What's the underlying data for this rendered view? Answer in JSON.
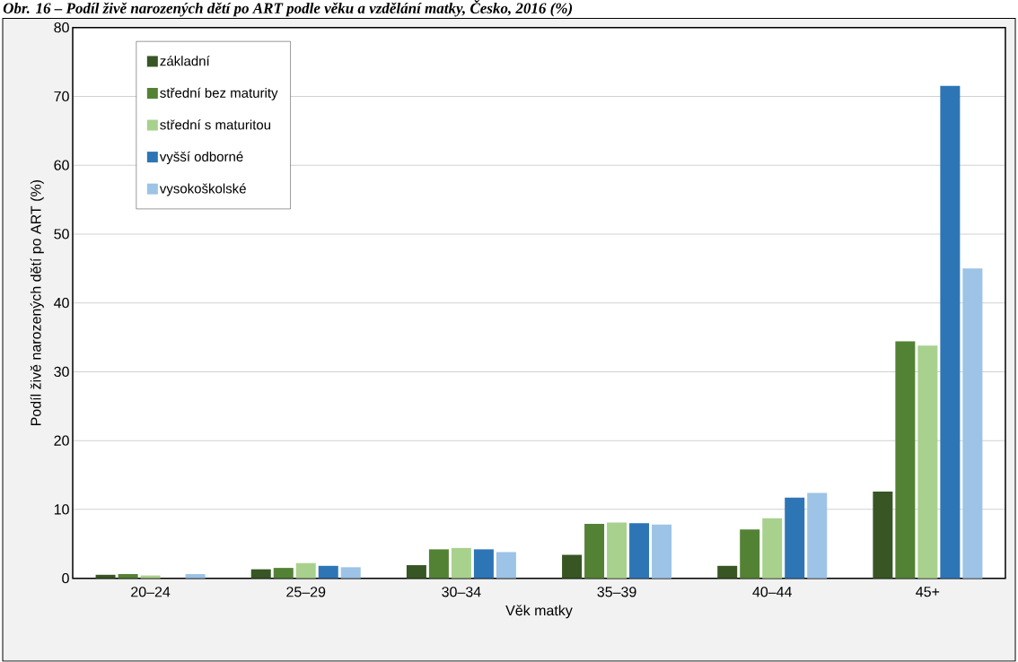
{
  "chart_data": {
    "type": "bar",
    "title": "Obr. 16 – Podíl živě narozených dětí po ART podle věku a vzdělání matky, Česko, 2016 (%)",
    "xlabel": "Věk matky",
    "ylabel": "Podíl živě narozených dětí po ART (%)",
    "categories": [
      "20–24",
      "25–29",
      "30–34",
      "35–39",
      "40–44",
      "45+"
    ],
    "series": [
      {
        "name": "základní",
        "color": "#375623",
        "values": [
          0.5,
          1.3,
          1.9,
          3.4,
          1.8,
          12.6
        ]
      },
      {
        "name": "střední bez maturity",
        "color": "#548235",
        "values": [
          0.6,
          1.5,
          4.2,
          7.9,
          7.1,
          34.4
        ]
      },
      {
        "name": "střední s maturitou",
        "color": "#a9d18e",
        "values": [
          0.4,
          2.2,
          4.4,
          8.1,
          8.7,
          33.8
        ]
      },
      {
        "name": "vyšší odborné",
        "color": "#2e75b6",
        "values": [
          null,
          1.8,
          4.2,
          8.0,
          11.7,
          71.5
        ]
      },
      {
        "name": "vysokoškolské",
        "color": "#9dc3e6",
        "values": [
          0.6,
          1.6,
          3.8,
          7.8,
          12.4,
          45.0
        ]
      }
    ],
    "ylim": [
      0,
      80
    ],
    "yticks": [
      0,
      10,
      20,
      30,
      40,
      50,
      60,
      70,
      80
    ],
    "grid": "y",
    "legend": "top left"
  }
}
